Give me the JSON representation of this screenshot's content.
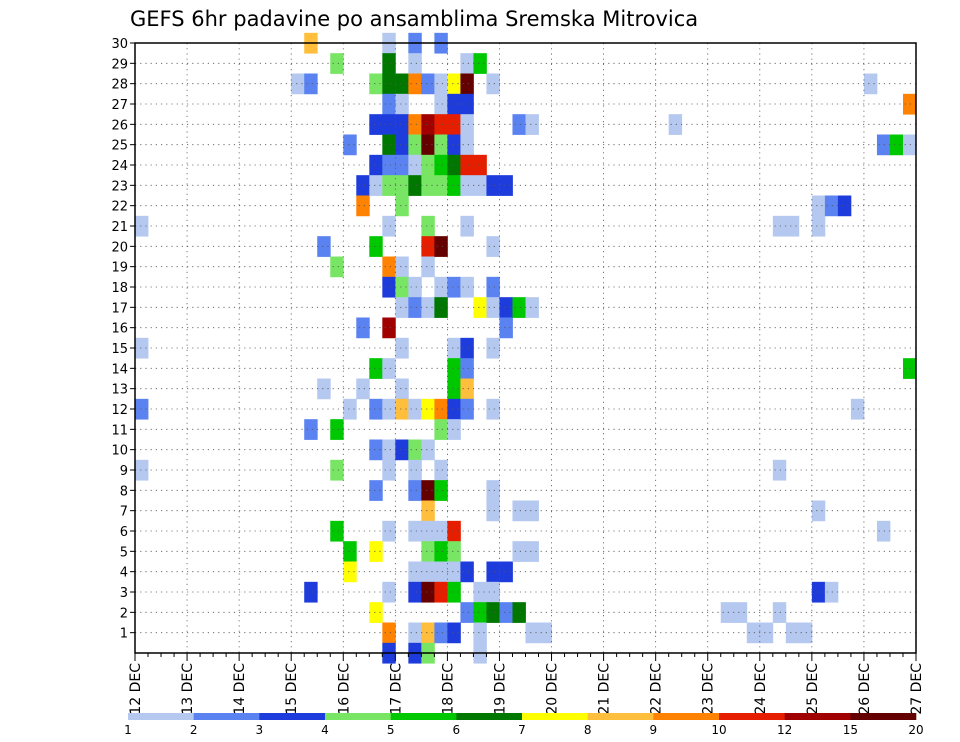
{
  "chart_data": {
    "type": "heatmap",
    "title": "GEFS 6hr padavine po ansamblima Sremska Mitrovica",
    "x_unit": "6-hour step",
    "x_range": [
      0,
      60
    ],
    "x_tick_labels": [
      "12 DEC",
      "13 DEC",
      "14 DEC",
      "15 DEC",
      "16 DEC",
      "17 DEC",
      "18 DEC",
      "19 DEC",
      "20 DEC",
      "21 DEC",
      "22 DEC",
      "23 DEC",
      "24 DEC",
      "25 DEC",
      "26 DEC",
      "27 DEC"
    ],
    "y_tick_labels": [
      "1",
      "2",
      "3",
      "4",
      "5",
      "6",
      "7",
      "8",
      "9",
      "10",
      "11",
      "12",
      "13",
      "14",
      "15",
      "16",
      "17",
      "18",
      "19",
      "20",
      "21",
      "22",
      "23",
      "24",
      "25",
      "26",
      "27",
      "28",
      "29",
      "30"
    ],
    "y_range": [
      0,
      30
    ],
    "grid": true,
    "colorbar": {
      "labels": [
        "1",
        "2",
        "3",
        "4",
        "5",
        "6",
        "7",
        "8",
        "9",
        "10",
        "12",
        "15",
        "20"
      ],
      "colors": [
        "#b4c8f0",
        "#5a82f0",
        "#1e3cdc",
        "#78e664",
        "#00c800",
        "#007800",
        "#ffff00",
        "#ffbe3c",
        "#ff8200",
        "#e61e00",
        "#a00000",
        "#640000"
      ]
    },
    "cells": [
      [
        0,
        21,
        0
      ],
      [
        0,
        15,
        0
      ],
      [
        0,
        12,
        1
      ],
      [
        0,
        9,
        0
      ],
      [
        12,
        28,
        0
      ],
      [
        13,
        30,
        7
      ],
      [
        13,
        28,
        1
      ],
      [
        13,
        11,
        1
      ],
      [
        13,
        3,
        2
      ],
      [
        14,
        20,
        1
      ],
      [
        14,
        13,
        0
      ],
      [
        15,
        29,
        3
      ],
      [
        15,
        19,
        3
      ],
      [
        15,
        11,
        4
      ],
      [
        15,
        9,
        3
      ],
      [
        15,
        6,
        4
      ],
      [
        16,
        25,
        1
      ],
      [
        16,
        12,
        0
      ],
      [
        16,
        5,
        4
      ],
      [
        16,
        4,
        6
      ],
      [
        17,
        23,
        2
      ],
      [
        17,
        22,
        8
      ],
      [
        17,
        16,
        1
      ],
      [
        17,
        13,
        0
      ],
      [
        18,
        28,
        3
      ],
      [
        18,
        26,
        2
      ],
      [
        18,
        24,
        2
      ],
      [
        18,
        23,
        0
      ],
      [
        18,
        20,
        4
      ],
      [
        18,
        14,
        4
      ],
      [
        18,
        12,
        1
      ],
      [
        18,
        10,
        1
      ],
      [
        18,
        8,
        1
      ],
      [
        18,
        5,
        6
      ],
      [
        18,
        2,
        6
      ],
      [
        19,
        30,
        0
      ],
      [
        19,
        29,
        5
      ],
      [
        19,
        28,
        5
      ],
      [
        19,
        27,
        1
      ],
      [
        19,
        26,
        2
      ],
      [
        19,
        25,
        5
      ],
      [
        19,
        24,
        1
      ],
      [
        19,
        23,
        3
      ],
      [
        19,
        21,
        0
      ],
      [
        19,
        19,
        8
      ],
      [
        19,
        18,
        2
      ],
      [
        19,
        16,
        10
      ],
      [
        19,
        14,
        0
      ],
      [
        19,
        12,
        0
      ],
      [
        19,
        10,
        0
      ],
      [
        19,
        9,
        0
      ],
      [
        19,
        6,
        0
      ],
      [
        19,
        3,
        0
      ],
      [
        19,
        1,
        8
      ],
      [
        19,
        0,
        2
      ],
      [
        20,
        28,
        5
      ],
      [
        20,
        27,
        0
      ],
      [
        20,
        26,
        2
      ],
      [
        20,
        25,
        2
      ],
      [
        20,
        24,
        1
      ],
      [
        20,
        23,
        3
      ],
      [
        20,
        22,
        3
      ],
      [
        20,
        19,
        0
      ],
      [
        20,
        18,
        3
      ],
      [
        20,
        17,
        0
      ],
      [
        20,
        15,
        0
      ],
      [
        20,
        13,
        0
      ],
      [
        20,
        12,
        7
      ],
      [
        20,
        10,
        2
      ],
      [
        21,
        30,
        1
      ],
      [
        21,
        29,
        0
      ],
      [
        21,
        28,
        8
      ],
      [
        21,
        26,
        8
      ],
      [
        21,
        25,
        3
      ],
      [
        21,
        24,
        0
      ],
      [
        21,
        23,
        5
      ],
      [
        21,
        18,
        0
      ],
      [
        21,
        17,
        1
      ],
      [
        21,
        12,
        0
      ],
      [
        21,
        10,
        3
      ],
      [
        21,
        9,
        0
      ],
      [
        21,
        8,
        1
      ],
      [
        21,
        6,
        0
      ],
      [
        21,
        4,
        0
      ],
      [
        21,
        3,
        2
      ],
      [
        21,
        1,
        0
      ],
      [
        21,
        0,
        2
      ],
      [
        22,
        28,
        1
      ],
      [
        22,
        26,
        10
      ],
      [
        22,
        25,
        11
      ],
      [
        22,
        24,
        3
      ],
      [
        22,
        23,
        3
      ],
      [
        22,
        21,
        3
      ],
      [
        22,
        20,
        9
      ],
      [
        22,
        19,
        0
      ],
      [
        22,
        17,
        0
      ],
      [
        22,
        12,
        6
      ],
      [
        22,
        10,
        0
      ],
      [
        22,
        8,
        11
      ],
      [
        22,
        7,
        7
      ],
      [
        22,
        6,
        0
      ],
      [
        22,
        5,
        3
      ],
      [
        22,
        4,
        0
      ],
      [
        22,
        3,
        11
      ],
      [
        22,
        1,
        7
      ],
      [
        22,
        0,
        3
      ],
      [
        23,
        30,
        1
      ],
      [
        23,
        28,
        0
      ],
      [
        23,
        27,
        0
      ],
      [
        23,
        26,
        9
      ],
      [
        23,
        25,
        3
      ],
      [
        23,
        24,
        4
      ],
      [
        23,
        23,
        3
      ],
      [
        23,
        20,
        11
      ],
      [
        23,
        18,
        0
      ],
      [
        23,
        17,
        5
      ],
      [
        23,
        12,
        8
      ],
      [
        23,
        11,
        3
      ],
      [
        23,
        9,
        0
      ],
      [
        23,
        8,
        4
      ],
      [
        23,
        6,
        0
      ],
      [
        23,
        5,
        4
      ],
      [
        23,
        4,
        0
      ],
      [
        23,
        3,
        9
      ],
      [
        23,
        1,
        1
      ],
      [
        24,
        28,
        6
      ],
      [
        24,
        27,
        2
      ],
      [
        24,
        26,
        9
      ],
      [
        24,
        25,
        2
      ],
      [
        24,
        24,
        5
      ],
      [
        24,
        23,
        4
      ],
      [
        24,
        18,
        1
      ],
      [
        24,
        15,
        0
      ],
      [
        24,
        14,
        4
      ],
      [
        24,
        13,
        4
      ],
      [
        24,
        12,
        2
      ],
      [
        24,
        11,
        0
      ],
      [
        24,
        6,
        9
      ],
      [
        24,
        5,
        3
      ],
      [
        24,
        4,
        0
      ],
      [
        24,
        3,
        4
      ],
      [
        24,
        1,
        2
      ],
      [
        25,
        29,
        0
      ],
      [
        25,
        28,
        11
      ],
      [
        25,
        27,
        2
      ],
      [
        25,
        26,
        0
      ],
      [
        25,
        25,
        0
      ],
      [
        25,
        24,
        9
      ],
      [
        25,
        23,
        0
      ],
      [
        25,
        21,
        0
      ],
      [
        25,
        18,
        0
      ],
      [
        25,
        15,
        2
      ],
      [
        25,
        14,
        1
      ],
      [
        25,
        13,
        7
      ],
      [
        25,
        12,
        1
      ],
      [
        25,
        4,
        2
      ],
      [
        25,
        2,
        1
      ],
      [
        26,
        29,
        4
      ],
      [
        26,
        24,
        9
      ],
      [
        26,
        23,
        0
      ],
      [
        26,
        17,
        6
      ],
      [
        26,
        3,
        0
      ],
      [
        26,
        2,
        4
      ],
      [
        26,
        1,
        0
      ],
      [
        26,
        0,
        0
      ],
      [
        27,
        28,
        0
      ],
      [
        27,
        23,
        2
      ],
      [
        27,
        20,
        0
      ],
      [
        27,
        18,
        1
      ],
      [
        27,
        17,
        0
      ],
      [
        27,
        15,
        0
      ],
      [
        27,
        12,
        0
      ],
      [
        27,
        8,
        0
      ],
      [
        27,
        7,
        0
      ],
      [
        27,
        4,
        2
      ],
      [
        27,
        3,
        0
      ],
      [
        27,
        2,
        5
      ],
      [
        28,
        23,
        2
      ],
      [
        28,
        17,
        2
      ],
      [
        28,
        16,
        1
      ],
      [
        28,
        4,
        2
      ],
      [
        28,
        2,
        1
      ],
      [
        29,
        26,
        1
      ],
      [
        29,
        17,
        4
      ],
      [
        29,
        7,
        0
      ],
      [
        29,
        5,
        0
      ],
      [
        29,
        2,
        5
      ],
      [
        30,
        26,
        0
      ],
      [
        30,
        17,
        0
      ],
      [
        30,
        7,
        0
      ],
      [
        30,
        5,
        0
      ],
      [
        30,
        1,
        0
      ],
      [
        31,
        1,
        0
      ],
      [
        41,
        26,
        0
      ],
      [
        45,
        2,
        0
      ],
      [
        46,
        2,
        0
      ],
      [
        47,
        1,
        0
      ],
      [
        48,
        1,
        0
      ],
      [
        49,
        21,
        0
      ],
      [
        49,
        9,
        0
      ],
      [
        49,
        2,
        0
      ],
      [
        50,
        21,
        0
      ],
      [
        50,
        1,
        0
      ],
      [
        51,
        1,
        0
      ],
      [
        52,
        22,
        0
      ],
      [
        52,
        21,
        0
      ],
      [
        52,
        7,
        0
      ],
      [
        52,
        3,
        2
      ],
      [
        53,
        22,
        1
      ],
      [
        53,
        3,
        0
      ],
      [
        54,
        22,
        2
      ],
      [
        55,
        12,
        0
      ],
      [
        56,
        28,
        0
      ],
      [
        57,
        25,
        1
      ],
      [
        57,
        6,
        0
      ],
      [
        58,
        25,
        4
      ],
      [
        59,
        27,
        8
      ],
      [
        59,
        25,
        0
      ],
      [
        59,
        14,
        4
      ]
    ]
  }
}
